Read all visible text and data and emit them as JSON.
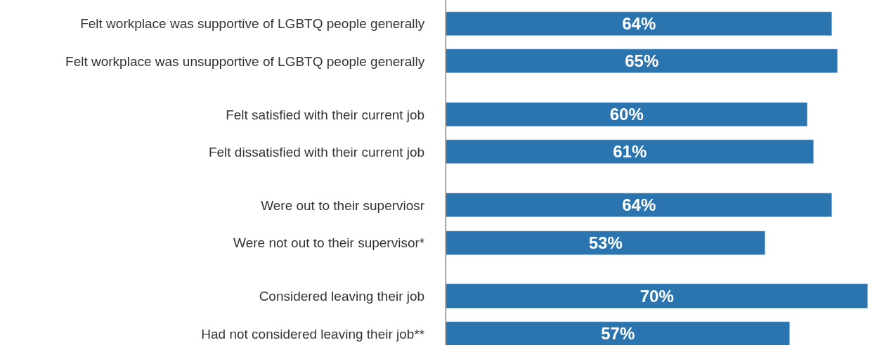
{
  "chart_data": {
    "type": "bar",
    "orientation": "horizontal",
    "categories": [
      "Felt workplace was supportive of LGBTQ people generally",
      "Felt workplace was unsupportive of LGBTQ people generally",
      null,
      "Felt satisfied with their current job",
      "Felt dissatisfied with their current job",
      null,
      "Were out to their superviosr",
      "Were not out to their supervisor*",
      null,
      "Considered leaving their job",
      "Had not considered leaving their job**"
    ],
    "values": [
      64,
      65,
      null,
      60,
      61,
      null,
      64,
      53,
      null,
      70,
      57
    ],
    "value_labels": [
      "64%",
      "65%",
      null,
      "60%",
      "61%",
      null,
      "64%",
      "53%",
      null,
      "70%",
      "57%"
    ],
    "color": "#2a74b0",
    "xlim": [
      0,
      70
    ],
    "tick_labels": "y"
  }
}
